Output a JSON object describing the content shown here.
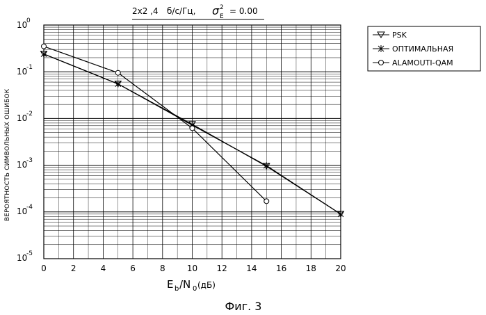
{
  "title": {
    "config": "2x2 ,4",
    "rate_unit": "б/с/Гц,",
    "sigma_symbol": "σ",
    "sigma_sup": "2",
    "sigma_sub": "E",
    "sigma_value": "= 0.00"
  },
  "figure_caption": "Фиг. 3",
  "chart_data": {
    "type": "line",
    "xlabel": {
      "main": "E",
      "sub_b": "b",
      "slash": "/N",
      "sub_0": "0",
      "unit": "(дБ)"
    },
    "ylabel": "ВЕРОЯТНОСТЬ СИМВОЛЬНЫХ ОШИБОК",
    "xlim": [
      0,
      20
    ],
    "ylim": [
      1e-05,
      1
    ],
    "yscale": "log",
    "grid": true,
    "legend_position": "outside-right-top",
    "x_ticks": [
      "0",
      "2",
      "4",
      "6",
      "8",
      "10",
      "12",
      "14",
      "16",
      "18",
      "20"
    ],
    "y_ticks": [
      {
        "base": "10",
        "exp": "0"
      },
      {
        "base": "10",
        "exp": "-1"
      },
      {
        "base": "10",
        "exp": "-2"
      },
      {
        "base": "10",
        "exp": "-3"
      },
      {
        "base": "10",
        "exp": "-4"
      },
      {
        "base": "10",
        "exp": "-5"
      }
    ],
    "series": [
      {
        "name": "PSK",
        "marker": "triangle-down",
        "x": [
          0,
          5,
          10,
          15,
          20
        ],
        "y": [
          0.24,
          0.055,
          0.0075,
          0.00095,
          9e-05
        ]
      },
      {
        "name": "ОПТИМАЛЬНАЯ",
        "marker": "asterisk",
        "x": [
          0,
          5,
          10,
          15,
          20
        ],
        "y": [
          0.24,
          0.055,
          0.0072,
          0.00098,
          9e-05
        ]
      },
      {
        "name": "ALAMOUTI-QAM",
        "marker": "circle",
        "x": [
          0,
          5,
          10,
          15
        ],
        "y": [
          0.35,
          0.095,
          0.0062,
          0.00017
        ]
      }
    ]
  },
  "colors": {
    "line": "#000000",
    "grid": "#000000",
    "background": "#ffffff"
  }
}
